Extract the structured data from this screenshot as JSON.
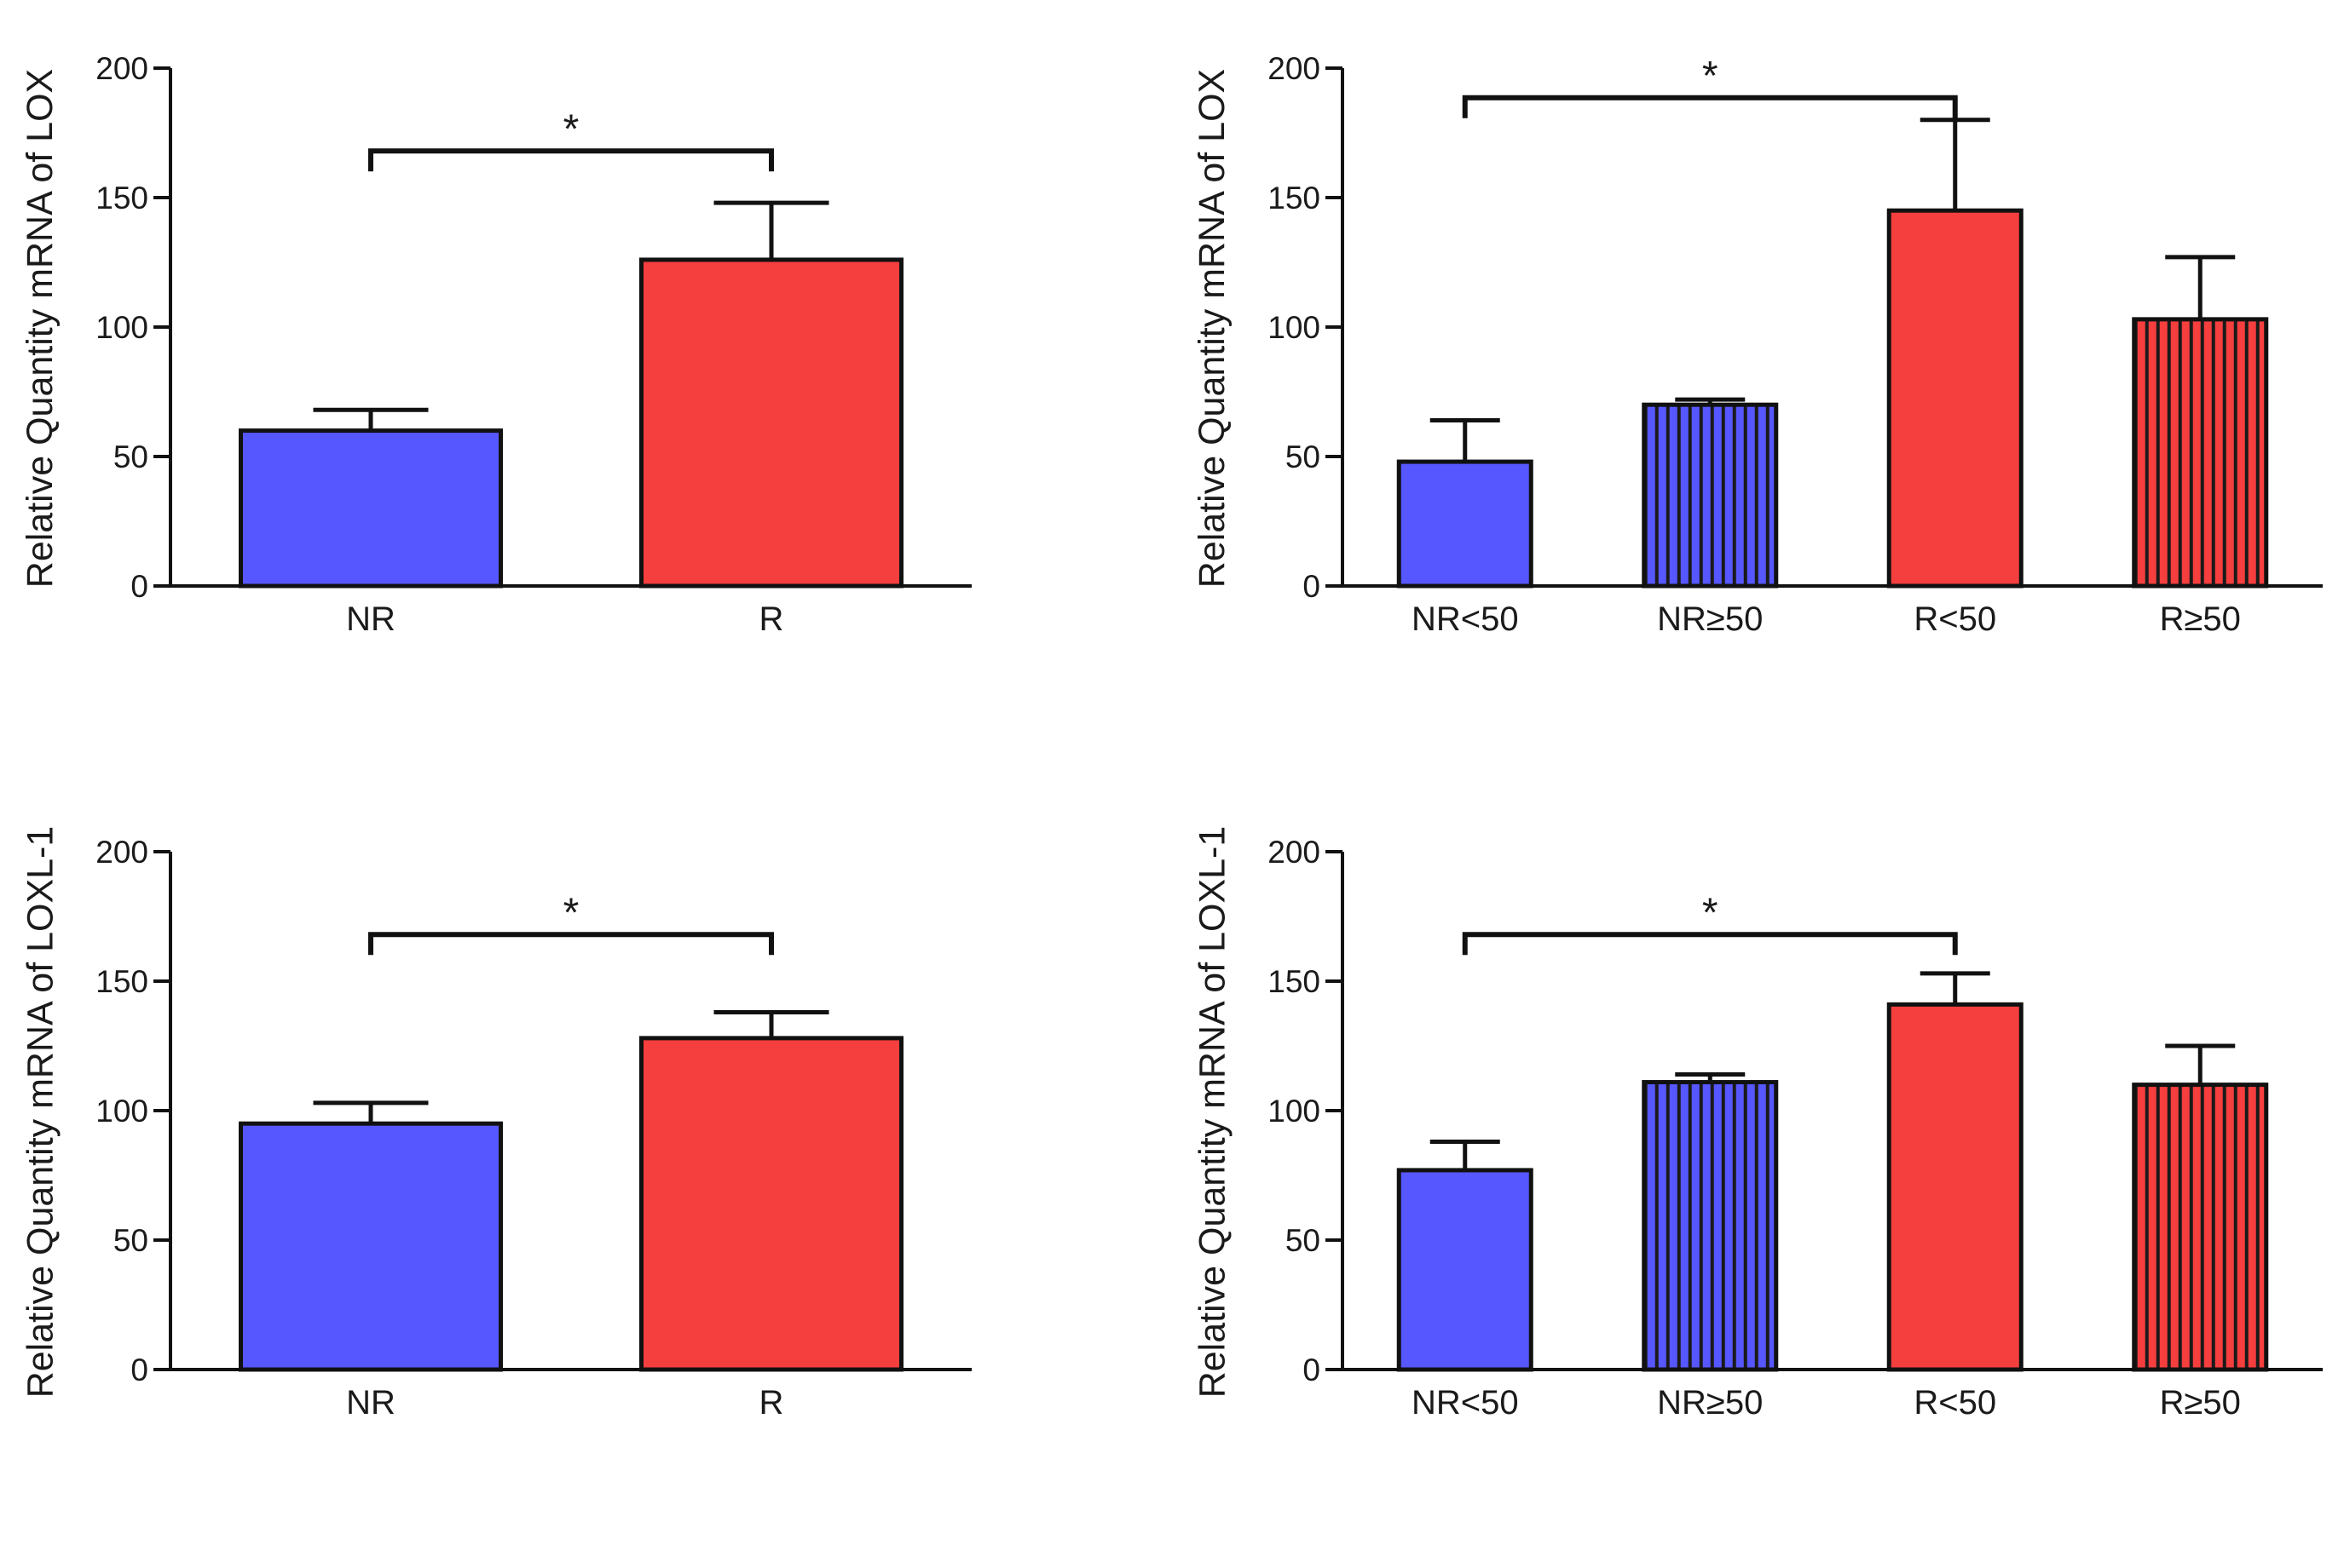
{
  "chart_data": [
    {
      "type": "bar",
      "panel": "top-left",
      "ylabel": "Relative Quantity mRNA of LOX",
      "xlabel": "",
      "ylim": [
        0,
        200
      ],
      "yticks": [
        "0",
        "50",
        "100",
        "150",
        "200"
      ],
      "categories": [
        "NR",
        "R"
      ],
      "values": [
        60,
        126
      ],
      "errors": [
        8,
        22
      ],
      "fills": [
        "solid",
        "solid"
      ],
      "colors": [
        "#5757ff",
        "#f53e3e"
      ],
      "significance": {
        "from": 0,
        "to": 1,
        "label": "*"
      }
    },
    {
      "type": "bar",
      "panel": "top-right",
      "ylabel": "Relative Quantity mRNA of LOX",
      "xlabel": "",
      "ylim": [
        0,
        200
      ],
      "yticks": [
        "0",
        "50",
        "100",
        "150",
        "200"
      ],
      "categories": [
        "NR<50",
        "NR≥50",
        "R<50",
        "R≥50"
      ],
      "values": [
        48,
        70,
        145,
        103
      ],
      "errors": [
        16,
        2,
        35,
        24
      ],
      "fills": [
        "solid",
        "striped",
        "solid",
        "striped"
      ],
      "colors": [
        "#5757ff",
        "#5757ff",
        "#f53e3e",
        "#f53e3e"
      ],
      "significance": {
        "from": 0,
        "to": 2,
        "label": "*"
      }
    },
    {
      "type": "bar",
      "panel": "bottom-left",
      "ylabel": "Relative Quantity mRNA of LOXL-1",
      "xlabel": "",
      "ylim": [
        0,
        200
      ],
      "yticks": [
        "0",
        "50",
        "100",
        "150",
        "200"
      ],
      "categories": [
        "NR",
        "R"
      ],
      "values": [
        95,
        128
      ],
      "errors": [
        8,
        10
      ],
      "fills": [
        "solid",
        "solid"
      ],
      "colors": [
        "#5757ff",
        "#f53e3e"
      ],
      "significance": {
        "from": 0,
        "to": 1,
        "label": "*"
      }
    },
    {
      "type": "bar",
      "panel": "bottom-right",
      "ylabel": "Relative Quantity mRNA of LOXL-1",
      "xlabel": "",
      "ylim": [
        0,
        200
      ],
      "yticks": [
        "0",
        "50",
        "100",
        "150",
        "200"
      ],
      "categories": [
        "NR<50",
        "NR≥50",
        "R<50",
        "R≥50"
      ],
      "values": [
        77,
        111,
        141,
        110
      ],
      "errors": [
        11,
        3,
        12,
        15
      ],
      "fills": [
        "solid",
        "striped",
        "solid",
        "striped"
      ],
      "colors": [
        "#5757ff",
        "#5757ff",
        "#f53e3e",
        "#f53e3e"
      ],
      "significance": {
        "from": 0,
        "to": 2,
        "label": "*"
      }
    }
  ]
}
